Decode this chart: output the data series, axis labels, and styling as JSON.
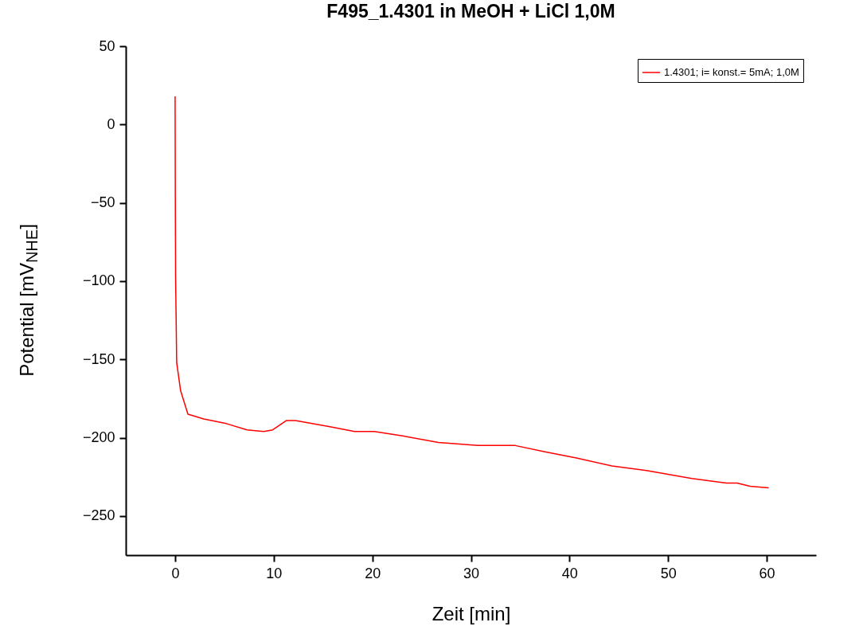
{
  "chart_data": {
    "type": "line",
    "title": "F495_1.4301 in MeOH + LiCl 1,0M",
    "xlabel": "Zeit [min]",
    "ylabel": "Potential [mV$_{NHE}$]",
    "x": [
      0,
      0.02,
      0.05,
      0.16,
      0.56,
      1.3,
      2.9,
      5.2,
      7.3,
      9.0,
      9.9,
      11.3,
      12.2,
      15.7,
      18.2,
      19.4,
      20.2,
      23.2,
      26.7,
      30.7,
      32.1,
      34.5,
      37.5,
      40.7,
      44.3,
      47.8,
      52.4,
      55.9,
      57.0,
      58.3,
      60.2
    ],
    "series": [
      {
        "name": "1.4301; i= konst.= 5mA; 1,0M",
        "color": "#ff0000",
        "values": [
          18,
          -40,
          -97,
          -152,
          -170,
          -185,
          -188,
          -191,
          -195,
          -196,
          -195,
          -189,
          -189,
          -193,
          -196,
          -196,
          -196,
          -199,
          -203,
          -205,
          -205,
          -205,
          -209,
          -213,
          -218,
          -221,
          -226,
          -229,
          -229,
          -231,
          -232
        ]
      }
    ],
    "xlim": [
      -5,
      65
    ],
    "xticks": [
      0,
      10,
      20,
      30,
      40,
      50,
      60
    ],
    "ylim": [
      -275,
      50
    ],
    "yticks": [
      -250,
      -200,
      -150,
      -100,
      -50,
      0,
      50
    ],
    "legend": "top right",
    "line_style": "solid"
  }
}
